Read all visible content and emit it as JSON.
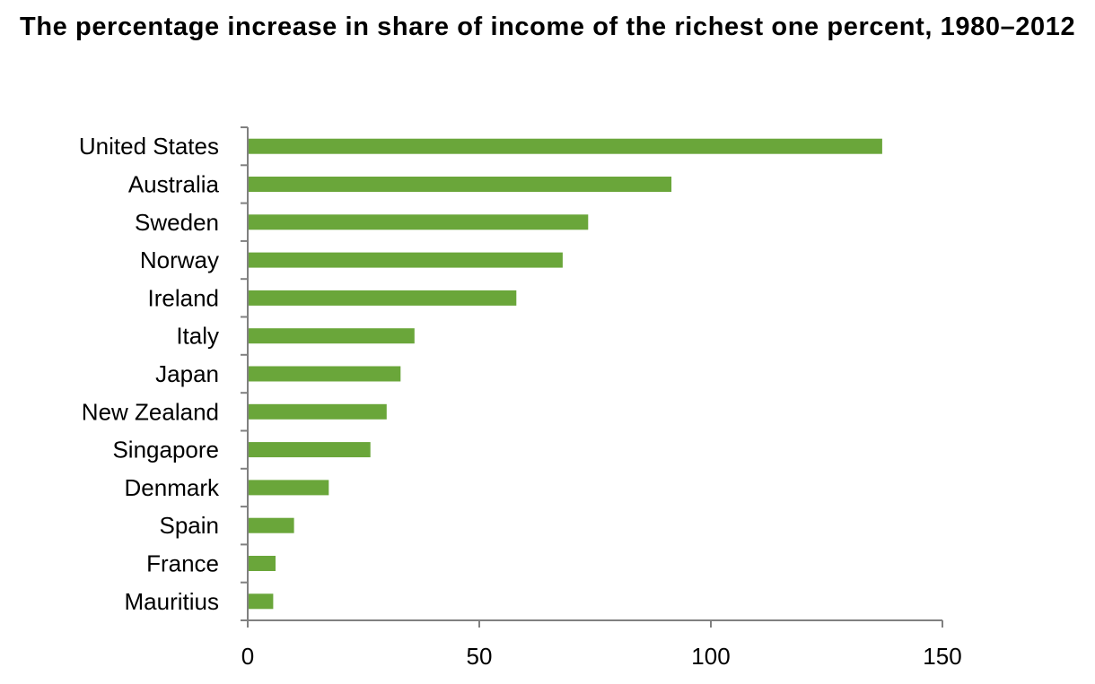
{
  "chart_data": {
    "type": "bar",
    "orientation": "horizontal",
    "title": "The percentage increase in share of income of the richest one percent, 1980–2012",
    "xlabel": "",
    "ylabel": "",
    "categories": [
      "United States",
      "Australia",
      "Sweden",
      "Norway",
      "Ireland",
      "Italy",
      "Japan",
      "New Zealand",
      "Singapore",
      "Denmark",
      "Spain",
      "France",
      "Mauritius"
    ],
    "series": [
      {
        "values": [
          137,
          91.5,
          73.5,
          68,
          58,
          36,
          33,
          30,
          26.5,
          17.5,
          10,
          6,
          5.5
        ]
      }
    ],
    "xlim": [
      0,
      150
    ],
    "xticks": [
      0,
      50,
      100,
      150
    ],
    "grid": false,
    "legend": "none",
    "bar_color": "#6aa63a",
    "axis_color": "#808080"
  }
}
